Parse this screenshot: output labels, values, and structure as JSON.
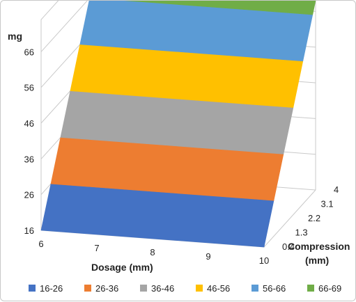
{
  "chart_data": {
    "type": "surface",
    "zlabel": "mg",
    "xlabel": "Dosage (mm)",
    "ylabel": "Compression (mm)",
    "ylabel_lines": [
      "Compression",
      "(mm)"
    ],
    "x_ticks": [
      "6",
      "7",
      "8",
      "9",
      "10"
    ],
    "y_ticks": [
      "0.4",
      "1.3",
      "2.2",
      "3.1",
      "4"
    ],
    "z_ticks": [
      "16",
      "26",
      "36",
      "46",
      "56",
      "66"
    ],
    "xlim": [
      6,
      10
    ],
    "ylim": [
      0.4,
      4
    ],
    "zlim": [
      16,
      69
    ],
    "surface": {
      "description_points": [
        {
          "dosage": 6,
          "compression": 0.4,
          "mg": 16
        },
        {
          "dosage": 10,
          "compression": 0.4,
          "mg": 16
        },
        {
          "dosage": 6,
          "compression": 4,
          "mg": 69
        },
        {
          "dosage": 10,
          "compression": 4,
          "mg": 69
        }
      ]
    },
    "bands": [
      {
        "label": "16-26",
        "from": 16,
        "to": 26,
        "color": "#4472C4"
      },
      {
        "label": "26-36",
        "from": 26,
        "to": 36,
        "color": "#ED7D31"
      },
      {
        "label": "36-46",
        "from": 36,
        "to": 46,
        "color": "#A5A5A5"
      },
      {
        "label": "46-56",
        "from": 46,
        "to": 56,
        "color": "#FFC000"
      },
      {
        "label": "56-66",
        "from": 56,
        "to": 66,
        "color": "#5B9BD5"
      },
      {
        "label": "66-69",
        "from": 66,
        "to": 69,
        "color": "#70AD47"
      }
    ],
    "legend_position": "bottom",
    "grid": true
  }
}
